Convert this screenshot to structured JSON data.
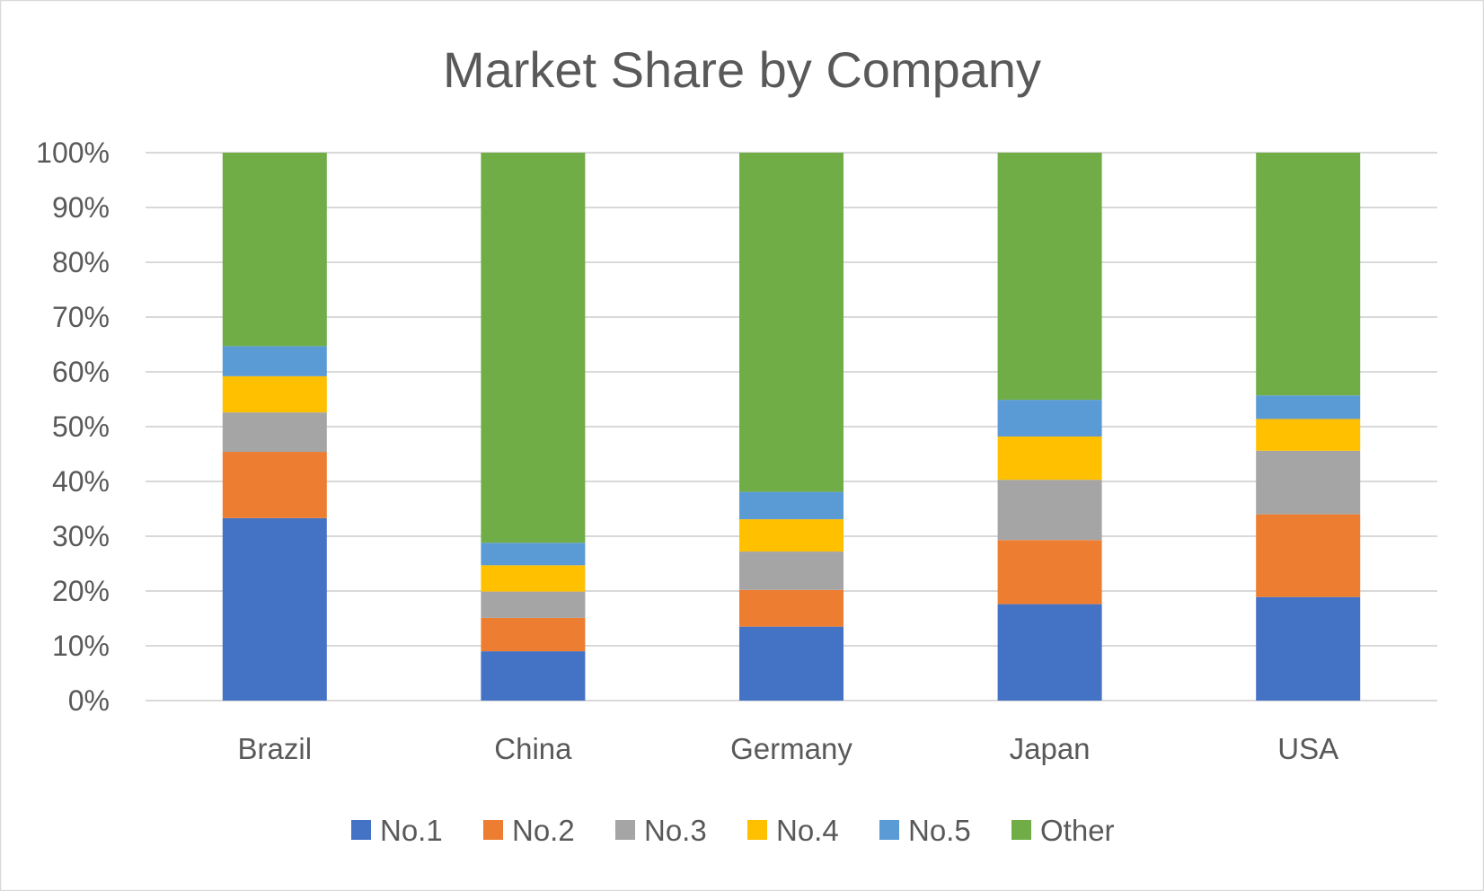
{
  "chart_data": {
    "type": "bar",
    "stacked": true,
    "percent_stacked": true,
    "title": "Market Share by Company",
    "xlabel": "",
    "ylabel": "",
    "ylim": [
      0,
      100
    ],
    "y_ticks": [
      "0%",
      "10%",
      "20%",
      "30%",
      "40%",
      "50%",
      "60%",
      "70%",
      "80%",
      "90%",
      "100%"
    ],
    "grid": true,
    "legend_position": "bottom",
    "categories": [
      "Brazil",
      "China",
      "Germany",
      "Japan",
      "USA"
    ],
    "series": [
      {
        "name": "No.1",
        "color": "#4472C4",
        "values": [
          33.3,
          9.0,
          13.5,
          17.6,
          18.9
        ]
      },
      {
        "name": "No.2",
        "color": "#ED7D31",
        "values": [
          12.1,
          6.1,
          6.7,
          11.7,
          15.1
        ]
      },
      {
        "name": "No.3",
        "color": "#A5A5A5",
        "values": [
          7.2,
          4.8,
          7.0,
          11.0,
          11.6
        ]
      },
      {
        "name": "No.4",
        "color": "#FFC000",
        "values": [
          6.6,
          4.8,
          5.9,
          7.9,
          5.8
        ]
      },
      {
        "name": "No.5",
        "color": "#5B9BD5",
        "values": [
          5.5,
          4.1,
          5.0,
          6.7,
          4.3
        ]
      },
      {
        "name": "Other",
        "color": "#70AD47",
        "values": [
          35.3,
          71.2,
          61.9,
          45.1,
          44.3
        ]
      }
    ]
  }
}
